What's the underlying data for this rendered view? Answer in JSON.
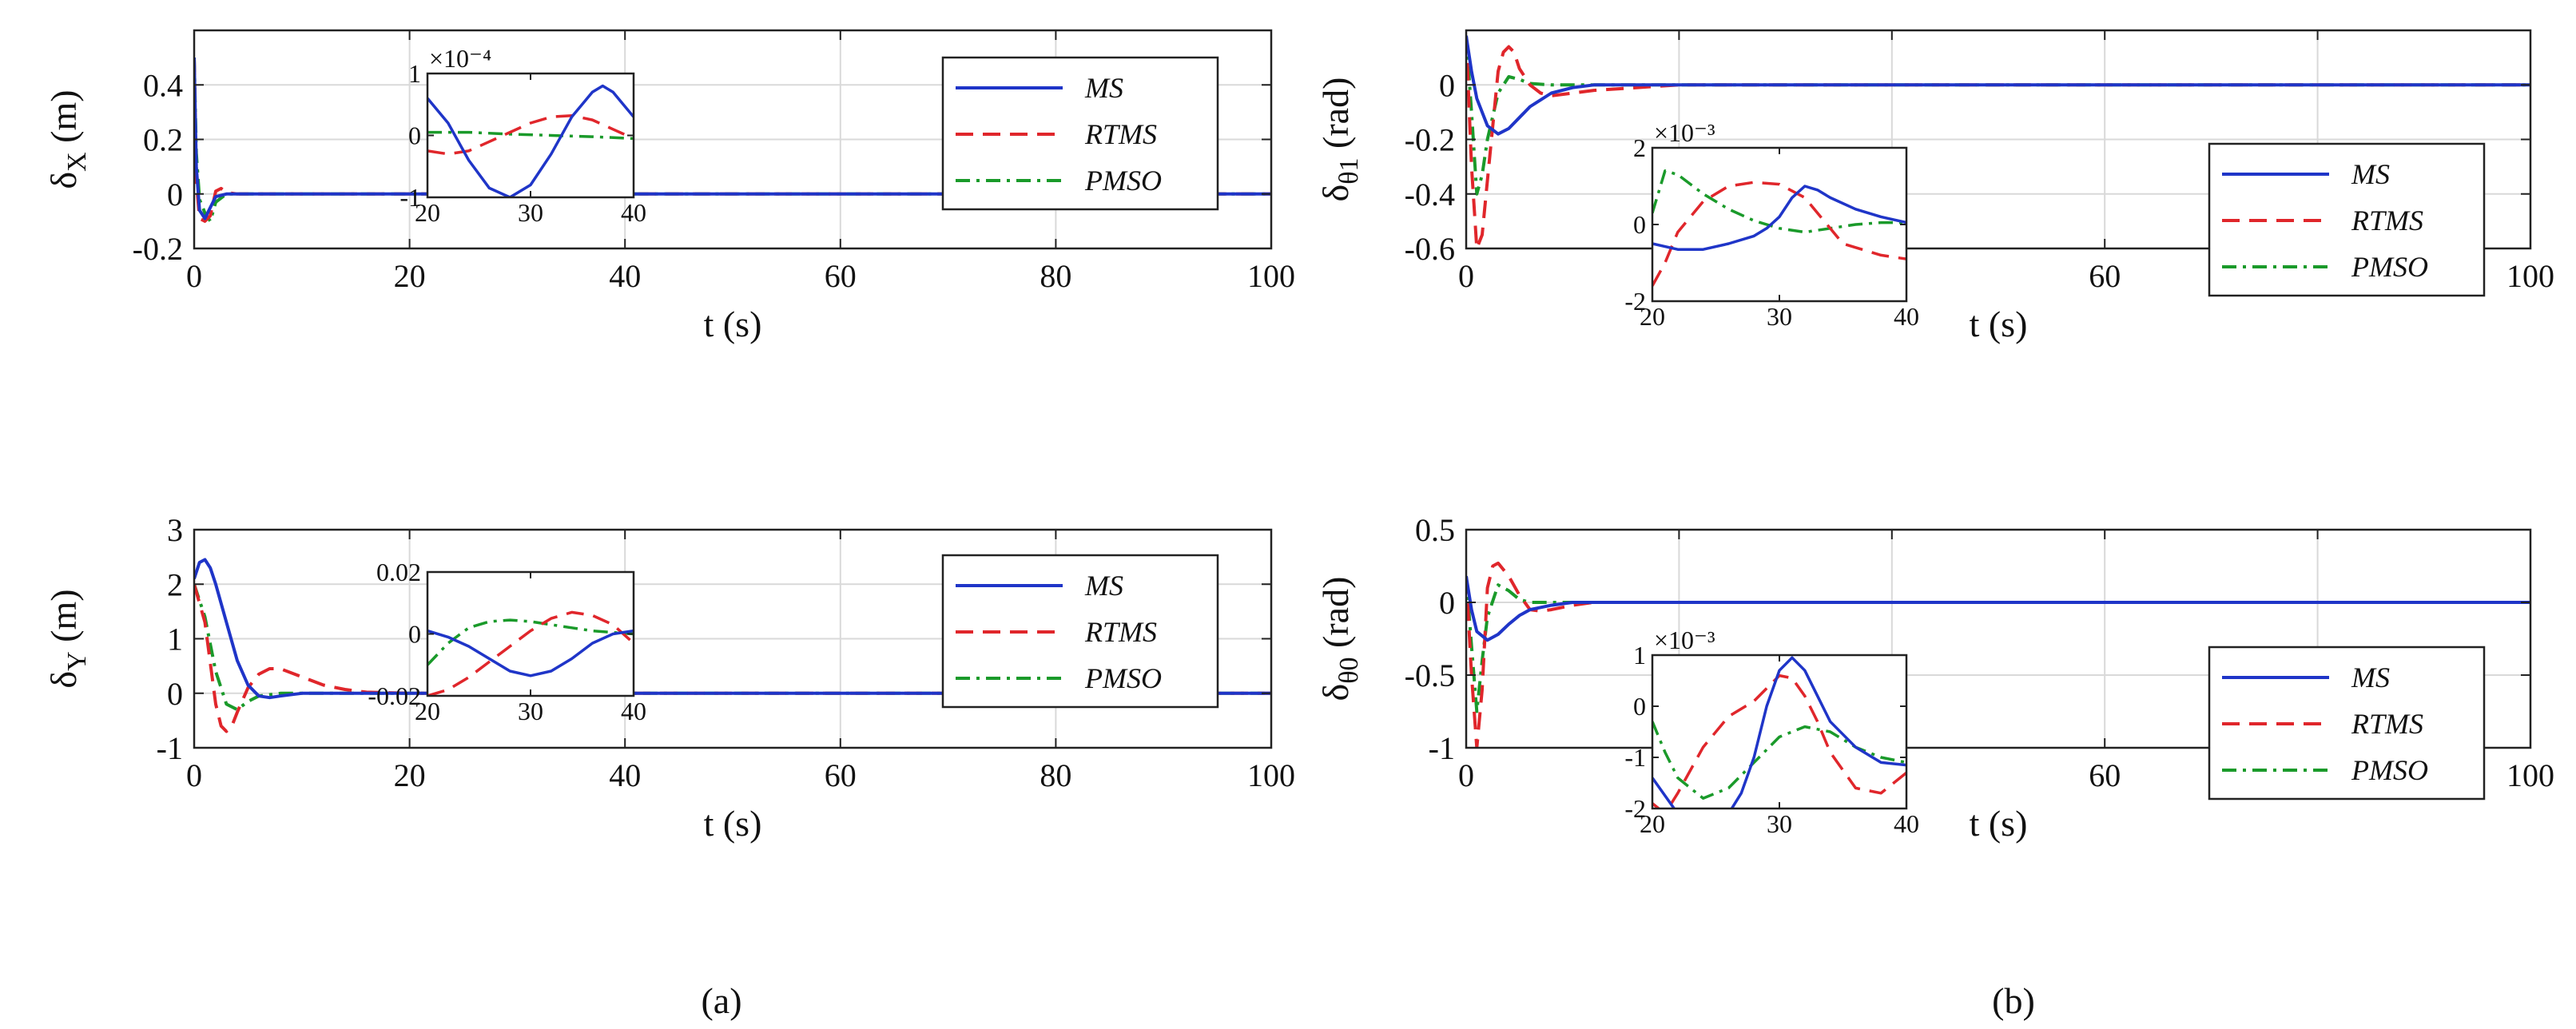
{
  "figure": {
    "captions": [
      "(a)",
      "(b)"
    ],
    "legend_labels": [
      "MS",
      "RTMS",
      "PMSO"
    ],
    "series_colors": {
      "MS": "#1f35c8",
      "RTMS": "#e0262b",
      "PMSO": "#1a9a2a"
    }
  },
  "chart_data": [
    {
      "type": "line",
      "panel": "a-top",
      "xlabel": "t (s)",
      "ylabel": "δX (m)",
      "xlim": [
        0,
        100
      ],
      "ylim": [
        -0.2,
        0.6
      ],
      "xticks": [
        0,
        20,
        40,
        60,
        80,
        100
      ],
      "yticks": [
        -0.2,
        0,
        0.2,
        0.4
      ],
      "ytick_labels": [
        "-0.2",
        "0",
        "0.2",
        "0.4"
      ],
      "grid": true,
      "legend": "top-right",
      "series": [
        {
          "name": "MS",
          "x": [
            0,
            0.2,
            0.5,
            1,
            1.5,
            2,
            3,
            4,
            6,
            10,
            100
          ],
          "y": [
            0.5,
            0.1,
            -0.06,
            -0.09,
            -0.05,
            -0.01,
            0,
            0,
            0,
            0,
            0
          ]
        },
        {
          "name": "RTMS",
          "x": [
            0,
            0.2,
            0.5,
            1,
            1.5,
            2,
            2.5,
            3,
            4,
            6,
            100
          ],
          "y": [
            0.5,
            0.05,
            -0.09,
            -0.1,
            -0.08,
            0.01,
            0.02,
            0.005,
            0,
            0,
            0
          ]
        },
        {
          "name": "PMSO",
          "x": [
            0,
            0.2,
            0.5,
            1,
            1.5,
            2,
            3,
            4,
            100
          ],
          "y": [
            0.5,
            0.15,
            -0.02,
            -0.07,
            -0.1,
            -0.03,
            0,
            0,
            0
          ]
        }
      ],
      "inset": {
        "xlim": [
          20,
          40
        ],
        "ylim": [
          -1,
          1
        ],
        "xticks": [
          20,
          30,
          40
        ],
        "yticks": [
          -1,
          0,
          1
        ],
        "ytick_labels": [
          "-1",
          "0",
          "1"
        ],
        "exponent_label": "×10⁻⁴",
        "series": [
          {
            "name": "MS",
            "x": [
              20,
              22,
              24,
              26,
              28,
              30,
              32,
              34,
              36,
              37,
              38,
              40
            ],
            "y": [
              0.6,
              0.2,
              -0.4,
              -0.85,
              -1,
              -0.8,
              -0.3,
              0.3,
              0.7,
              0.8,
              0.7,
              0.3
            ]
          },
          {
            "name": "RTMS",
            "x": [
              20,
              22,
              24,
              26,
              28,
              30,
              32,
              34,
              36,
              38,
              40
            ],
            "y": [
              -0.25,
              -0.3,
              -0.25,
              -0.1,
              0.05,
              0.2,
              0.3,
              0.32,
              0.25,
              0.1,
              -0.05
            ]
          },
          {
            "name": "PMSO",
            "x": [
              20,
              24,
              28,
              32,
              36,
              40
            ],
            "y": [
              0.05,
              0.05,
              0.02,
              0,
              -0.02,
              -0.05
            ]
          }
        ]
      }
    },
    {
      "type": "line",
      "panel": "a-bottom",
      "xlabel": "t (s)",
      "ylabel": "δY (m)",
      "xlim": [
        0,
        100
      ],
      "ylim": [
        -1,
        3
      ],
      "xticks": [
        0,
        20,
        40,
        60,
        80,
        100
      ],
      "yticks": [
        -1,
        0,
        1,
        2,
        3
      ],
      "ytick_labels": [
        "-1",
        "0",
        "1",
        "2",
        "3"
      ],
      "grid": true,
      "legend": "top-right",
      "series": [
        {
          "name": "MS",
          "x": [
            0,
            0.5,
            1,
            1.5,
            2,
            3,
            4,
            5,
            6,
            7,
            8,
            10,
            12,
            100
          ],
          "y": [
            2.1,
            2.4,
            2.45,
            2.3,
            2.0,
            1.3,
            0.6,
            0.15,
            -0.05,
            -0.08,
            -0.05,
            0,
            0,
            0
          ]
        },
        {
          "name": "RTMS",
          "x": [
            0,
            1,
            2,
            2.5,
            3,
            3.5,
            4,
            5,
            6,
            7,
            8,
            10,
            12,
            14,
            16,
            20,
            100
          ],
          "y": [
            2.0,
            1.3,
            -0.2,
            -0.6,
            -0.7,
            -0.6,
            -0.35,
            0.1,
            0.35,
            0.45,
            0.45,
            0.3,
            0.15,
            0.07,
            0.02,
            0,
            0
          ]
        },
        {
          "name": "PMSO",
          "x": [
            0,
            1,
            1.5,
            2,
            3,
            4,
            5,
            6,
            8,
            10,
            100
          ],
          "y": [
            2.0,
            1.4,
            0.9,
            0.4,
            -0.2,
            -0.3,
            -0.15,
            -0.05,
            0,
            0,
            0
          ]
        }
      ],
      "inset": {
        "xlim": [
          20,
          40
        ],
        "ylim": [
          -0.02,
          0.02
        ],
        "xticks": [
          20,
          30,
          40
        ],
        "yticks": [
          -0.02,
          0,
          0.02
        ],
        "ytick_labels": [
          "-0.02",
          "0",
          "0.02"
        ],
        "exponent_label": "",
        "series": [
          {
            "name": "MS",
            "x": [
              20,
              22,
              24,
              26,
              28,
              30,
              32,
              34,
              36,
              38,
              40
            ],
            "y": [
              0.001,
              -0.001,
              -0.004,
              -0.008,
              -0.012,
              -0.0135,
              -0.012,
              -0.008,
              -0.003,
              0,
              0.001
            ]
          },
          {
            "name": "RTMS",
            "x": [
              20,
              22,
              24,
              26,
              28,
              30,
              32,
              34,
              36,
              38,
              40
            ],
            "y": [
              -0.02,
              -0.018,
              -0.014,
              -0.009,
              -0.004,
              0.001,
              0.005,
              0.007,
              0.006,
              0.003,
              -0.003
            ]
          },
          {
            "name": "PMSO",
            "x": [
              20,
              22,
              24,
              26,
              28,
              30,
              32,
              34,
              36,
              38,
              40
            ],
            "y": [
              -0.01,
              -0.003,
              0.002,
              0.004,
              0.0045,
              0.004,
              0.003,
              0.002,
              0.001,
              0.0005,
              0
            ]
          }
        ]
      }
    },
    {
      "type": "line",
      "panel": "b-top",
      "xlabel": "t (s)",
      "ylabel": "δθ1 (rad)",
      "xlim": [
        0,
        100
      ],
      "ylim": [
        -0.6,
        0.2
      ],
      "xticks": [
        0,
        20,
        40,
        60,
        80,
        100
      ],
      "yticks": [
        -0.6,
        -0.4,
        -0.2,
        0
      ],
      "ytick_labels": [
        "-0.6",
        "-0.4",
        "-0.2",
        "0"
      ],
      "grid": true,
      "legend": "right",
      "series": [
        {
          "name": "MS",
          "x": [
            0,
            0.5,
            1,
            2,
            3,
            4,
            5,
            6,
            8,
            10,
            12,
            100
          ],
          "y": [
            0.18,
            0.05,
            -0.05,
            -0.15,
            -0.18,
            -0.16,
            -0.12,
            -0.08,
            -0.03,
            -0.01,
            0,
            0
          ]
        },
        {
          "name": "RTMS",
          "x": [
            0,
            0.5,
            1,
            1.5,
            2,
            3,
            3.5,
            4,
            4.5,
            5,
            6,
            7,
            8,
            10,
            12,
            20,
            100
          ],
          "y": [
            0.18,
            -0.3,
            -0.6,
            -0.55,
            -0.35,
            0.05,
            0.12,
            0.14,
            0.12,
            0.06,
            0.0,
            -0.03,
            -0.04,
            -0.03,
            -0.02,
            0,
            0
          ]
        },
        {
          "name": "PMSO",
          "x": [
            0,
            0.5,
            1,
            1.5,
            2,
            3,
            4,
            5,
            6,
            8,
            100
          ],
          "y": [
            0.18,
            -0.1,
            -0.4,
            -0.33,
            -0.2,
            -0.03,
            0.03,
            0.02,
            0.005,
            0,
            0
          ]
        }
      ],
      "inset": {
        "xlim": [
          20,
          40
        ],
        "ylim": [
          -2,
          2
        ],
        "xticks": [
          20,
          30,
          40
        ],
        "yticks": [
          -2,
          0,
          2
        ],
        "ytick_labels": [
          "-2",
          "0",
          "2"
        ],
        "exponent_label": "×10⁻³",
        "series": [
          {
            "name": "MS",
            "x": [
              20,
              22,
              24,
              26,
              28,
              29,
              30,
              31,
              32,
              33,
              34,
              36,
              38,
              40
            ],
            "y": [
              -0.5,
              -0.65,
              -0.65,
              -0.5,
              -0.3,
              -0.1,
              0.2,
              0.7,
              1.0,
              0.9,
              0.7,
              0.4,
              0.2,
              0.05
            ]
          },
          {
            "name": "RTMS",
            "x": [
              20,
              21,
              22,
              24,
              26,
              28,
              30,
              32,
              34,
              35,
              36,
              38,
              40
            ],
            "y": [
              -1.6,
              -1.0,
              -0.2,
              0.6,
              1.0,
              1.1,
              1.05,
              0.7,
              -0.1,
              -0.5,
              -0.6,
              -0.8,
              -0.9
            ]
          },
          {
            "name": "PMSO",
            "x": [
              20,
              21,
              22,
              24,
              26,
              28,
              30,
              32,
              34,
              36,
              38,
              40
            ],
            "y": [
              0.3,
              1.4,
              1.3,
              0.8,
              0.4,
              0.1,
              -0.1,
              -0.2,
              -0.1,
              0,
              0.05,
              0.05
            ]
          }
        ]
      }
    },
    {
      "type": "line",
      "panel": "b-bottom",
      "xlabel": "t (s)",
      "ylabel": "δθ0 (rad)",
      "xlim": [
        0,
        100
      ],
      "ylim": [
        -1,
        0.5
      ],
      "xticks": [
        0,
        20,
        40,
        60,
        80,
        100
      ],
      "yticks": [
        -1,
        -0.5,
        0,
        0.5
      ],
      "ytick_labels": [
        "-1",
        "-0.5",
        "0",
        "0.5"
      ],
      "grid": true,
      "legend": "right",
      "series": [
        {
          "name": "MS",
          "x": [
            0,
            0.5,
            1,
            2,
            3,
            4,
            5,
            6,
            8,
            10,
            12,
            100
          ],
          "y": [
            0.18,
            -0.05,
            -0.2,
            -0.26,
            -0.22,
            -0.15,
            -0.09,
            -0.05,
            -0.02,
            0,
            0,
            0
          ]
        },
        {
          "name": "RTMS",
          "x": [
            0,
            0.5,
            1,
            1.5,
            2,
            2.5,
            3,
            4,
            5,
            6,
            7,
            8,
            10,
            12,
            100
          ],
          "y": [
            0.18,
            -0.5,
            -1.0,
            -0.6,
            0.1,
            0.25,
            0.27,
            0.18,
            0.05,
            -0.05,
            -0.06,
            -0.05,
            -0.02,
            0,
            0
          ]
        },
        {
          "name": "PMSO",
          "x": [
            0,
            0.5,
            1,
            1.5,
            2,
            3,
            4,
            5,
            6,
            8,
            100
          ],
          "y": [
            0.18,
            -0.3,
            -0.75,
            -0.4,
            -0.1,
            0.12,
            0.08,
            0.02,
            0,
            0,
            0
          ]
        }
      ],
      "inset": {
        "xlim": [
          20,
          40
        ],
        "ylim": [
          -2,
          1
        ],
        "xticks": [
          20,
          30,
          40
        ],
        "yticks": [
          -2,
          -1,
          0,
          1
        ],
        "ytick_labels": [
          "-2",
          "-1",
          "0",
          "1"
        ],
        "exponent_label": "×10⁻³",
        "series": [
          {
            "name": "MS",
            "x": [
              20,
              22,
              24,
              26,
              27,
              28,
              29,
              30,
              31,
              32,
              33,
              34,
              36,
              38,
              40
            ],
            "y": [
              -1.4,
              -2.1,
              -2.2,
              -2.1,
              -1.7,
              -1.0,
              0.0,
              0.7,
              0.95,
              0.7,
              0.2,
              -0.3,
              -0.8,
              -1.1,
              -1.15
            ]
          },
          {
            "name": "RTMS",
            "x": [
              20,
              21,
              22,
              24,
              26,
              28,
              30,
              31,
              32,
              33,
              34,
              36,
              38,
              40
            ],
            "y": [
              -1.9,
              -2.1,
              -1.7,
              -0.8,
              -0.2,
              0.1,
              0.6,
              0.55,
              0.2,
              -0.3,
              -0.9,
              -1.6,
              -1.7,
              -1.3
            ]
          },
          {
            "name": "PMSO",
            "x": [
              20,
              21,
              22,
              24,
              26,
              28,
              30,
              32,
              34,
              36,
              38,
              40
            ],
            "y": [
              -0.3,
              -0.9,
              -1.4,
              -1.8,
              -1.6,
              -1.1,
              -0.6,
              -0.4,
              -0.5,
              -0.8,
              -1.0,
              -1.1
            ]
          }
        ]
      }
    }
  ]
}
